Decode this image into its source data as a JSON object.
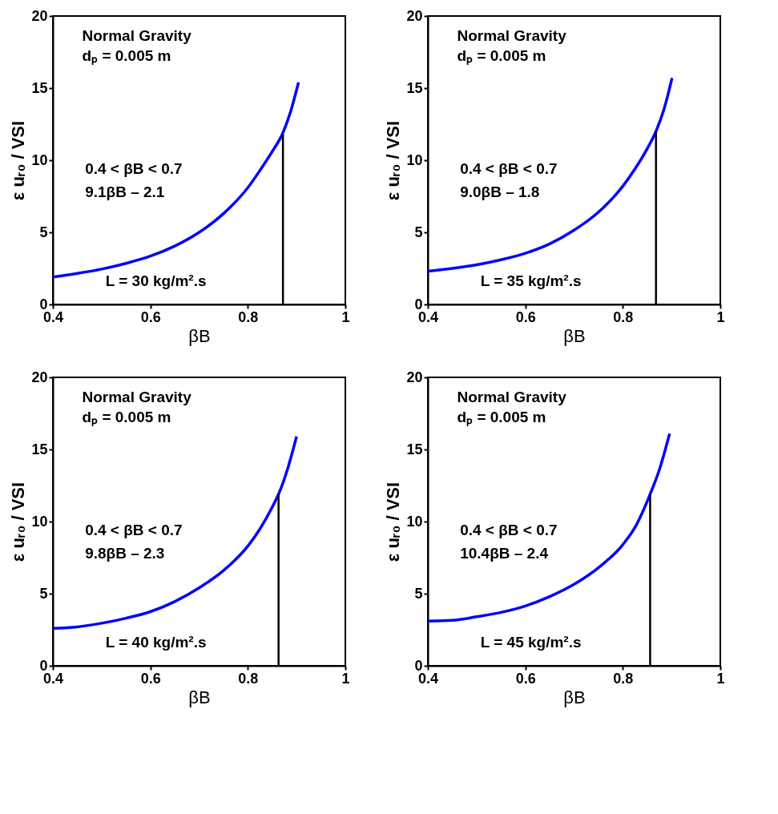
{
  "chart_data": [
    {
      "type": "line",
      "xlabel": "βB",
      "ylabel": "ε uᵣ₀ / VSI",
      "xlim": [
        0.4,
        1
      ],
      "ylim": [
        0,
        20
      ],
      "xticks": [
        0.4,
        0.6,
        0.8,
        1
      ],
      "yticks": [
        0,
        5,
        10,
        15,
        20
      ],
      "grid": false,
      "annotations": [
        "Normal Gravity",
        "dₚ = 0.005 m",
        "0.4 < βB < 0.7",
        "9.1βB – 2.1",
        "L = 30 kg/m².s"
      ],
      "series": [
        {
          "color": "#0000ff",
          "x": [
            0.4,
            0.45,
            0.5,
            0.55,
            0.6,
            0.65,
            0.7,
            0.75,
            0.8,
            0.825,
            0.85,
            0.872,
            0.888,
            0.904
          ],
          "values": [
            1.9,
            2.15,
            2.45,
            2.85,
            3.35,
            4.05,
            5.0,
            6.3,
            8.1,
            9.3,
            10.6,
            11.9,
            13.4,
            15.4
          ]
        },
        {
          "color": "#000000",
          "x": [
            0.872,
            0.872
          ],
          "values": [
            0,
            11.8
          ]
        }
      ]
    },
    {
      "type": "line",
      "xlabel": "βB",
      "ylabel": "ε uᵣ₀ / VSI",
      "xlim": [
        0.4,
        1
      ],
      "ylim": [
        0,
        20
      ],
      "xticks": [
        0.4,
        0.6,
        0.8,
        1
      ],
      "yticks": [
        0,
        5,
        10,
        15,
        20
      ],
      "grid": false,
      "annotations": [
        "Normal Gravity",
        "dₚ = 0.005 m",
        "0.4 < βB < 0.7",
        "9.0βB – 1.8",
        "L = 35 kg/m².s"
      ],
      "series": [
        {
          "color": "#0000ff",
          "x": [
            0.4,
            0.45,
            0.5,
            0.55,
            0.6,
            0.65,
            0.7,
            0.75,
            0.8,
            0.825,
            0.85,
            0.868,
            0.885,
            0.901
          ],
          "values": [
            2.3,
            2.5,
            2.75,
            3.1,
            3.55,
            4.2,
            5.15,
            6.4,
            8.2,
            9.4,
            10.8,
            12.0,
            13.6,
            15.7
          ]
        },
        {
          "color": "#000000",
          "x": [
            0.868,
            0.868
          ],
          "values": [
            0,
            12.0
          ]
        }
      ]
    },
    {
      "type": "line",
      "xlabel": "βB",
      "ylabel": "ε uᵣ₀ / VSI",
      "xlim": [
        0.4,
        1
      ],
      "ylim": [
        0,
        20
      ],
      "xticks": [
        0.4,
        0.6,
        0.8,
        1
      ],
      "yticks": [
        0,
        5,
        10,
        15,
        20
      ],
      "grid": false,
      "annotations": [
        "Normal Gravity",
        "dₚ = 0.005 m",
        "0.4 < βB < 0.7",
        "9.8βB – 2.3",
        "L = 40 kg/m².s"
      ],
      "series": [
        {
          "color": "#0000ff",
          "x": [
            0.4,
            0.45,
            0.5,
            0.55,
            0.6,
            0.65,
            0.7,
            0.75,
            0.8,
            0.825,
            0.85,
            0.863,
            0.882,
            0.9
          ],
          "values": [
            2.6,
            2.7,
            2.95,
            3.3,
            3.75,
            4.45,
            5.4,
            6.6,
            8.3,
            9.5,
            11.0,
            11.9,
            13.7,
            15.9
          ]
        },
        {
          "color": "#000000",
          "x": [
            0.863,
            0.863
          ],
          "values": [
            0,
            11.9
          ]
        }
      ]
    },
    {
      "type": "line",
      "xlabel": "βB",
      "ylabel": "ε uᵣ₀ / VSI",
      "xlim": [
        0.4,
        1
      ],
      "ylim": [
        0,
        20
      ],
      "xticks": [
        0.4,
        0.6,
        0.8,
        1
      ],
      "yticks": [
        0,
        5,
        10,
        15,
        20
      ],
      "grid": false,
      "annotations": [
        "Normal Gravity",
        "dₚ = 0.005 m",
        "0.4 < βB < 0.7",
        "10.4βB – 2.4",
        "L = 45 kg/m².s"
      ],
      "series": [
        {
          "color": "#0000ff",
          "x": [
            0.4,
            0.45,
            0.5,
            0.55,
            0.6,
            0.65,
            0.7,
            0.75,
            0.8,
            0.825,
            0.856,
            0.875,
            0.896
          ],
          "values": [
            3.1,
            3.15,
            3.4,
            3.7,
            4.15,
            4.8,
            5.65,
            6.8,
            8.4,
            9.6,
            11.9,
            13.6,
            16.1
          ]
        },
        {
          "color": "#000000",
          "x": [
            0.856,
            0.856
          ],
          "values": [
            0,
            11.9
          ]
        }
      ]
    }
  ]
}
